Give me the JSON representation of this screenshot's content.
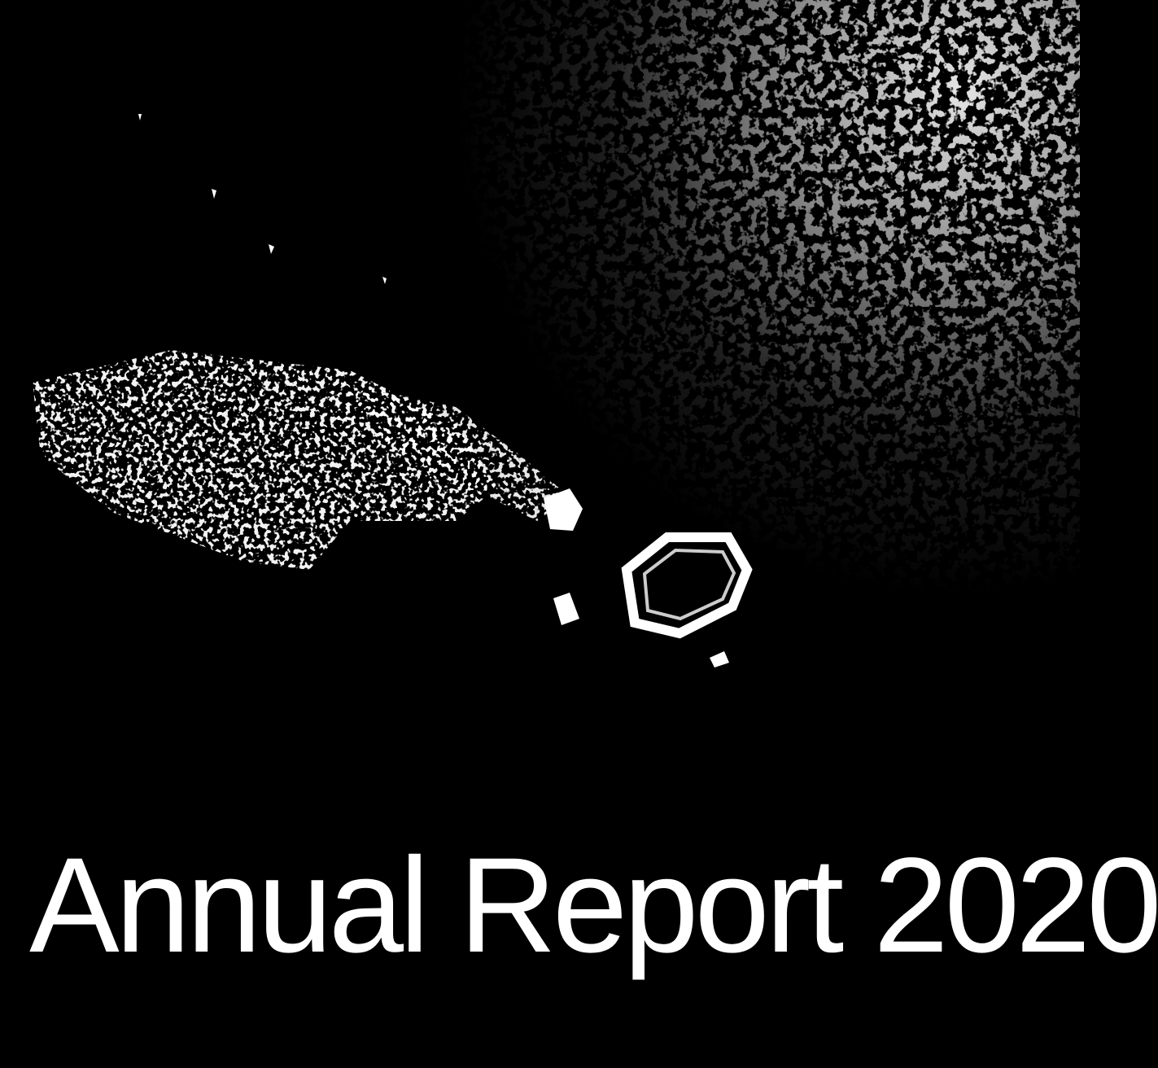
{
  "document": {
    "title": "Annual Report 2020"
  },
  "colors": {
    "background": "#000000",
    "foreground": "#ffffff"
  }
}
